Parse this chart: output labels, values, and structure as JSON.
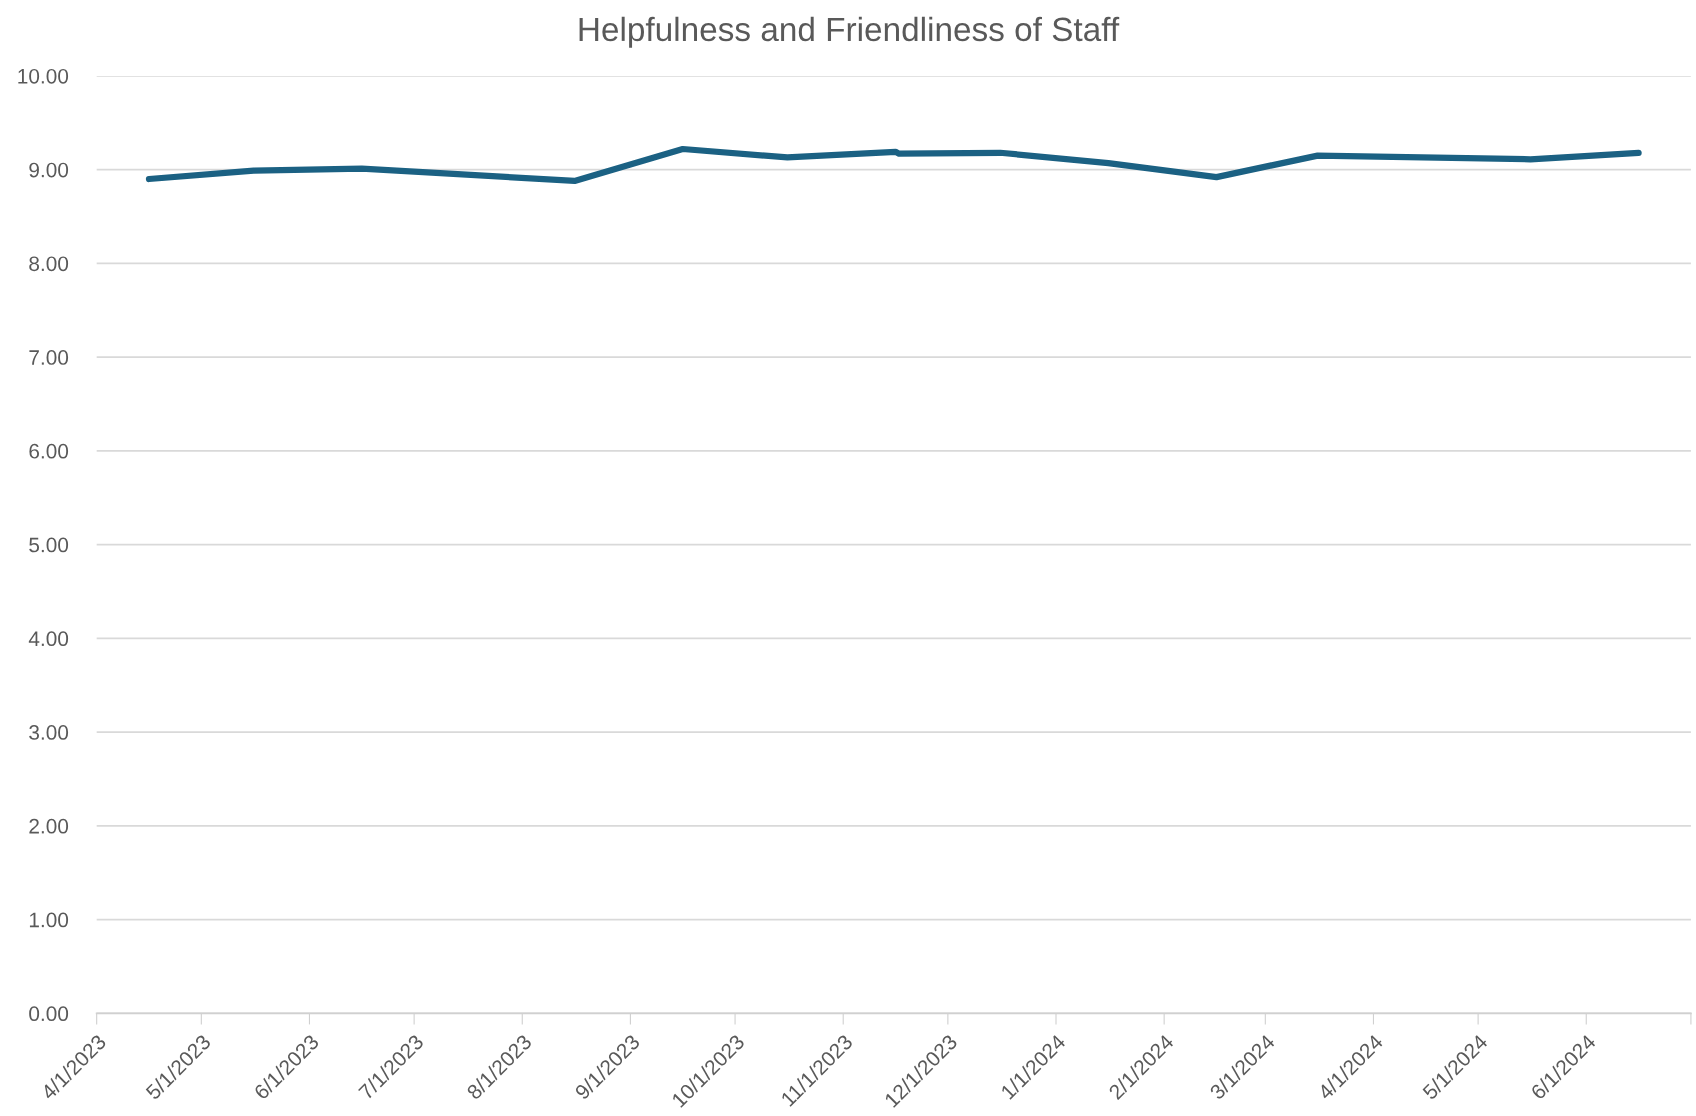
{
  "chart_data": {
    "type": "line",
    "title": "Helpfulness and Friendliness of Staff",
    "x": [
      "2023-04-16",
      "2023-05-16",
      "2023-06-16",
      "2023-08-16",
      "2023-09-16",
      "2023-10-16",
      "2023-11-16",
      "2023-11-17",
      "2023-12-16",
      "2024-01-16",
      "2024-02-16",
      "2024-03-16",
      "2024-05-16",
      "2024-06-16"
    ],
    "series": [
      {
        "color": "#1b6183",
        "values": [
          8.9,
          8.99,
          9.01,
          8.88,
          9.22,
          9.13,
          9.19,
          9.17,
          9.18,
          9.07,
          8.92,
          9.15,
          9.11,
          9.18
        ]
      }
    ],
    "xlim": [
      "2023-04-01",
      "2024-07-01"
    ],
    "xticks": [
      {
        "value": "2023-04-01",
        "label": "4/1/2023"
      },
      {
        "value": "2023-05-01",
        "label": "5/1/2023"
      },
      {
        "value": "2023-06-01",
        "label": "6/1/2023"
      },
      {
        "value": "2023-07-01",
        "label": "7/1/2023"
      },
      {
        "value": "2023-08-01",
        "label": "8/1/2023"
      },
      {
        "value": "2023-09-01",
        "label": "9/1/2023"
      },
      {
        "value": "2023-10-01",
        "label": "10/1/2023"
      },
      {
        "value": "2023-11-01",
        "label": "11/1/2023"
      },
      {
        "value": "2023-12-01",
        "label": "12/1/2023"
      },
      {
        "value": "2024-01-01",
        "label": "1/1/2024"
      },
      {
        "value": "2024-02-01",
        "label": "2/1/2024"
      },
      {
        "value": "2024-03-01",
        "label": "3/1/2024"
      },
      {
        "value": "2024-04-01",
        "label": "4/1/2024"
      },
      {
        "value": "2024-05-01",
        "label": "5/1/2024"
      },
      {
        "value": "2024-06-01",
        "label": "6/1/2024"
      },
      {
        "value": "2024-07-01",
        "label": null
      }
    ],
    "ylim": [
      0,
      10
    ],
    "yticks": [
      {
        "value": 0,
        "label": "0.00"
      },
      {
        "value": 1,
        "label": "1.00"
      },
      {
        "value": 2,
        "label": "2.00"
      },
      {
        "value": 3,
        "label": "3.00"
      },
      {
        "value": 4,
        "label": "4.00"
      },
      {
        "value": 5,
        "label": "5.00"
      },
      {
        "value": 6,
        "label": "6.00"
      },
      {
        "value": 7,
        "label": "7.00"
      },
      {
        "value": 8,
        "label": "8.00"
      },
      {
        "value": 9,
        "label": "9.00"
      },
      {
        "value": 10,
        "label": "10.00"
      }
    ],
    "grid": "y",
    "marker": "none",
    "line_style": "solid"
  }
}
